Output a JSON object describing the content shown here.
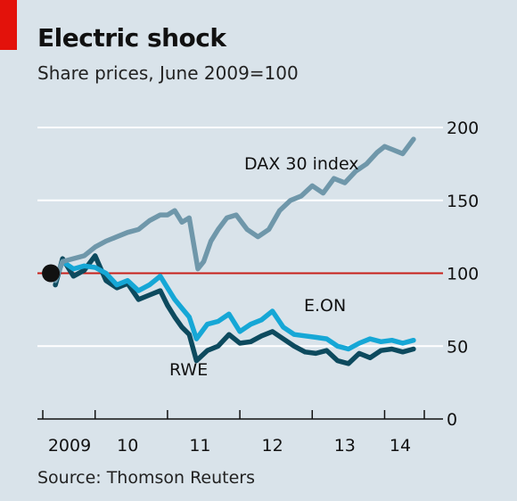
{
  "header": {
    "title": "Electric shock",
    "subtitle": "Share prices, June 2009=100"
  },
  "footer": {
    "source": "Source: Thomson Reuters"
  },
  "colors": {
    "background": "#d9e3ea",
    "accent": "#e3120b",
    "dax": "#6f97aa",
    "eon": "#16a7d6",
    "rwe": "#0d4a5e",
    "reference_line": "#c8201a",
    "gridline": "#ffffff"
  },
  "chart_data": {
    "type": "line",
    "title": "Electric shock",
    "subtitle": "Share prices, June 2009=100",
    "xlabel": "",
    "ylabel": "",
    "x_ticks": [
      "2009",
      "10",
      "11",
      "12",
      "13",
      "14"
    ],
    "y_ticks": [
      "0",
      "50",
      "100",
      "150",
      "200"
    ],
    "ylim": [
      0,
      200
    ],
    "xlim": [
      2009.4,
      2014.45
    ],
    "grid": true,
    "reference_line": 100,
    "start_marker": {
      "x": 2009.45,
      "y": 100
    },
    "series": [
      {
        "name": "DAX 30 index",
        "x": [
          2009.45,
          2009.55,
          2009.7,
          2009.85,
          2010.0,
          2010.15,
          2010.3,
          2010.45,
          2010.6,
          2010.75,
          2010.9,
          2011.0,
          2011.1,
          2011.2,
          2011.3,
          2011.42,
          2011.5,
          2011.6,
          2011.7,
          2011.82,
          2011.95,
          2012.1,
          2012.25,
          2012.4,
          2012.55,
          2012.7,
          2012.85,
          2013.0,
          2013.15,
          2013.3,
          2013.45,
          2013.6,
          2013.75,
          2013.9,
          2014.0,
          2014.1,
          2014.25,
          2014.4
        ],
        "y": [
          95,
          108,
          110,
          112,
          118,
          122,
          125,
          128,
          130,
          136,
          140,
          140,
          143,
          135,
          138,
          103,
          108,
          122,
          130,
          138,
          140,
          130,
          125,
          130,
          143,
          150,
          153,
          160,
          155,
          165,
          162,
          170,
          175,
          183,
          187,
          185,
          182,
          192
        ]
      },
      {
        "name": "E.ON",
        "x": [
          2009.45,
          2009.55,
          2009.7,
          2009.85,
          2010.0,
          2010.15,
          2010.3,
          2010.45,
          2010.6,
          2010.75,
          2010.9,
          2011.0,
          2011.1,
          2011.2,
          2011.3,
          2011.4,
          2011.55,
          2011.7,
          2011.85,
          2012.0,
          2012.15,
          2012.3,
          2012.45,
          2012.6,
          2012.75,
          2012.9,
          2013.05,
          2013.2,
          2013.35,
          2013.5,
          2013.65,
          2013.8,
          2013.95,
          2014.1,
          2014.25,
          2014.4
        ],
        "y": [
          95,
          108,
          103,
          105,
          104,
          100,
          92,
          95,
          88,
          92,
          98,
          90,
          82,
          76,
          70,
          55,
          65,
          67,
          72,
          60,
          65,
          68,
          74,
          63,
          58,
          57,
          56,
          55,
          50,
          48,
          52,
          55,
          53,
          54,
          52,
          54
        ]
      },
      {
        "name": "RWE",
        "x": [
          2009.45,
          2009.55,
          2009.7,
          2009.85,
          2010.0,
          2010.15,
          2010.3,
          2010.45,
          2010.6,
          2010.75,
          2010.9,
          2011.0,
          2011.1,
          2011.2,
          2011.3,
          2011.4,
          2011.55,
          2011.7,
          2011.85,
          2012.0,
          2012.15,
          2012.3,
          2012.45,
          2012.6,
          2012.75,
          2012.9,
          2013.05,
          2013.2,
          2013.35,
          2013.5,
          2013.65,
          2013.8,
          2013.95,
          2014.1,
          2014.25,
          2014.4
        ],
        "y": [
          92,
          110,
          98,
          102,
          112,
          95,
          90,
          93,
          82,
          85,
          88,
          78,
          70,
          63,
          58,
          40,
          47,
          50,
          58,
          52,
          53,
          57,
          60,
          55,
          50,
          46,
          45,
          47,
          40,
          38,
          45,
          42,
          47,
          48,
          46,
          48
        ]
      }
    ],
    "annotations": [
      {
        "text": "DAX 30 index",
        "series": "DAX 30 index"
      },
      {
        "text": "E.ON",
        "series": "E.ON"
      },
      {
        "text": "RWE",
        "series": "RWE"
      }
    ]
  }
}
